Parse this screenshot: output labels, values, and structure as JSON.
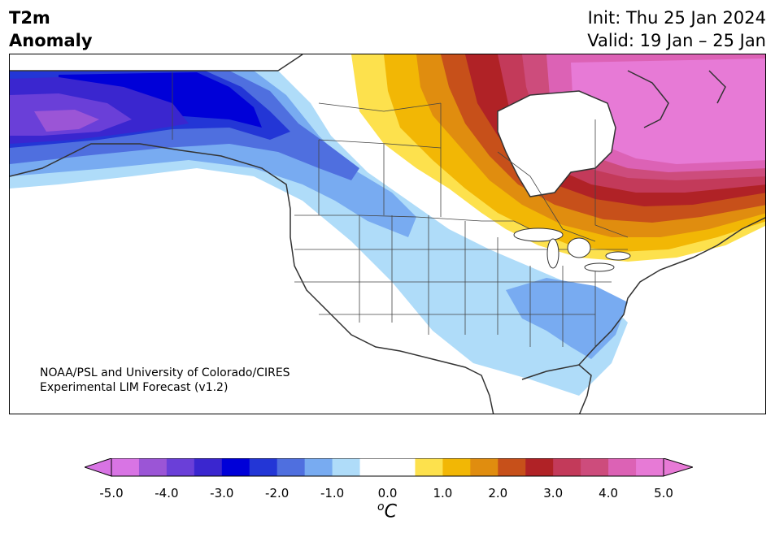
{
  "title": {
    "line1": "T2m",
    "line2": "Anomaly"
  },
  "init": "Init: Thu 25 Jan 2024",
  "valid": "Valid: 19 Jan – 25 Jan",
  "credit": {
    "line1": "NOAA/PSL and University of Colorado/CIRES",
    "line2": "Experimental LIM Forecast (v1.2)"
  },
  "colorbar": {
    "ticks": [
      "-5.0",
      "-4.0",
      "-3.0",
      "-2.0",
      "-1.0",
      "0.0",
      "1.0",
      "2.0",
      "3.0",
      "4.0",
      "5.0"
    ],
    "unit_sup": "o",
    "unit": "C",
    "colors": [
      "#d874e4",
      "#9b55d6",
      "#6a3fd8",
      "#3a26cf",
      "#0000d8",
      "#2336d6",
      "#4f6fdf",
      "#78abf1",
      "#afdcf9",
      "#ffffff",
      "#ffffff",
      "#fde14d",
      "#f2b705",
      "#e08d0f",
      "#c7501a",
      "#b02226",
      "#c33a5a",
      "#cd4c7c",
      "#dc62b5",
      "#e77ad6"
    ]
  }
}
